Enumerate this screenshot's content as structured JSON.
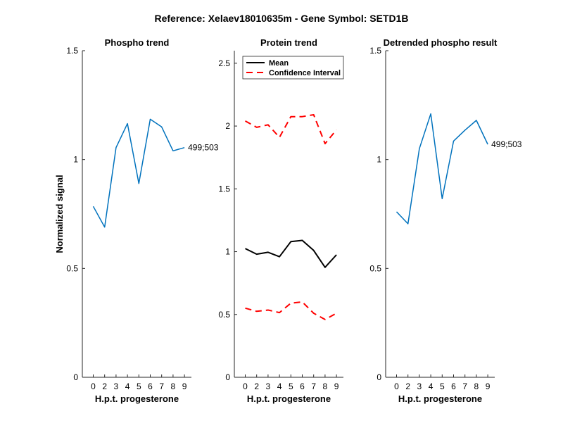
{
  "figure": {
    "suptitle": "Reference:  Xelaev18010635m - Gene Symbol:  SETD1B"
  },
  "colors": {
    "blue": "#0072bd",
    "black": "#000000",
    "red": "#ff0000"
  },
  "chart_data": [
    {
      "type": "line",
      "title": "Phospho trend",
      "xlabel": "H.p.t. progesterone",
      "ylabel": "Normalized signal",
      "ylim": [
        0,
        1.5
      ],
      "yticks": [
        "0",
        "0.5",
        "1",
        "1.5"
      ],
      "xticklabels": [
        "0",
        "2",
        "3",
        "4",
        "5",
        "6",
        "7",
        "8",
        "9"
      ],
      "series": [
        {
          "values": [
            0.785,
            0.69,
            1.055,
            1.165,
            0.89,
            1.185,
            1.15,
            1.04,
            1.055
          ]
        }
      ],
      "end_label": "499;503"
    },
    {
      "type": "line",
      "title": "Protein trend",
      "xlabel": "H.p.t. progesterone",
      "ylabel": "",
      "ylim": [
        0,
        2.6
      ],
      "yticks": [
        "0",
        "0.5",
        "1",
        "1.5",
        "2",
        "2.5"
      ],
      "xticklabels": [
        "0",
        "2",
        "3",
        "4",
        "5",
        "6",
        "7",
        "8",
        "9"
      ],
      "legend": {
        "position": "top-right"
      },
      "series": [
        {
          "name": "Mean",
          "values": [
            1.025,
            0.98,
            0.995,
            0.96,
            1.08,
            1.09,
            1.01,
            0.875,
            0.975
          ]
        },
        {
          "name": "Confidence Interval",
          "values": [
            2.04,
            1.99,
            2.01,
            1.91,
            2.075,
            2.075,
            2.09,
            1.86,
            1.97
          ]
        },
        {
          "values": [
            0.55,
            0.525,
            0.535,
            0.515,
            0.59,
            0.6,
            0.51,
            0.46,
            0.51
          ]
        }
      ]
    },
    {
      "type": "line",
      "title": "Detrended phospho result",
      "xlabel": "H.p.t. progesterone",
      "ylabel": "",
      "ylim": [
        0,
        1.5
      ],
      "yticks": [
        "0",
        "0.5",
        "1",
        "1.5"
      ],
      "xticklabels": [
        "0",
        "2",
        "3",
        "4",
        "5",
        "6",
        "7",
        "8",
        "9"
      ],
      "series": [
        {
          "values": [
            0.76,
            0.705,
            1.05,
            1.21,
            0.82,
            1.085,
            1.135,
            1.18,
            1.07
          ]
        }
      ],
      "end_label": "499;503"
    }
  ]
}
